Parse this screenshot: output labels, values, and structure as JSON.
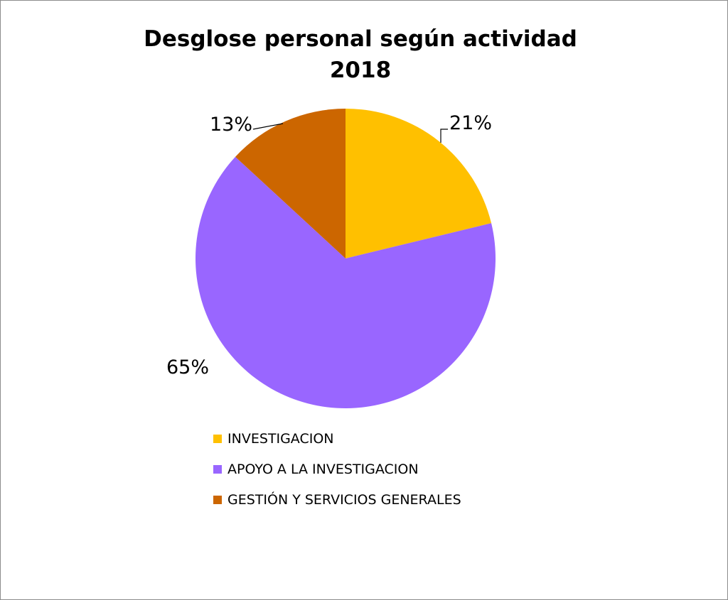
{
  "chart_data": {
    "type": "pie",
    "title": "Desglose personal según actividad",
    "subtitle": "2018",
    "slices": [
      {
        "label": "INVESTIGACION",
        "value": 21,
        "display": "21%",
        "color": "#FFC000"
      },
      {
        "label": "APOYO A LA INVESTIGACION",
        "value": 65,
        "display": "65%",
        "color": "#9966FF"
      },
      {
        "label": "GESTIÓN Y SERVICIOS GENERALES",
        "value": 13,
        "display": "13%",
        "color": "#CC6600"
      }
    ],
    "legend_position": "bottom"
  }
}
